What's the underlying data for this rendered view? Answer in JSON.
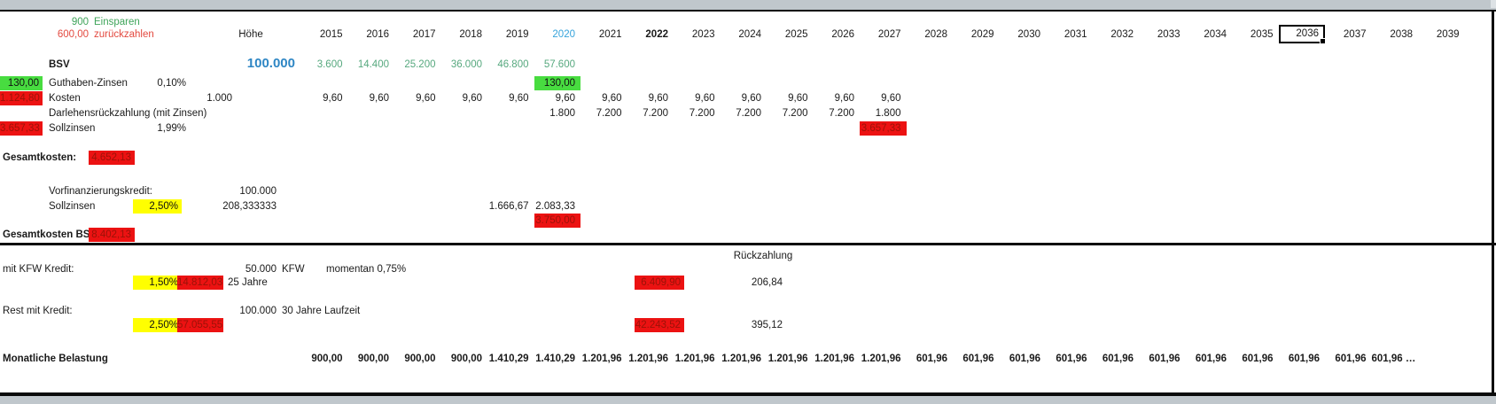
{
  "header": {
    "einsparen_value": "900",
    "einsparen_label": "Einsparen",
    "zurueckzahlen_value": "600,00",
    "zurueckzahlen_label": "zurückzahlen",
    "hoehe_label": "Höhe",
    "years": [
      "2015",
      "2016",
      "2017",
      "2018",
      "2019",
      "2020",
      "2021",
      "2022",
      "2023",
      "2024",
      "2025",
      "2026",
      "2027",
      "2028",
      "2029",
      "2030",
      "2031",
      "2032",
      "2033",
      "2034",
      "2035",
      "2036",
      "2037",
      "2038",
      "2039"
    ],
    "blue_year": "2020",
    "bold_year": "2022",
    "selected_year": "2036"
  },
  "bsv": {
    "label": "BSV",
    "amount": "100.000",
    "savings_by_year": [
      "3.600",
      "14.400",
      "25.200",
      "36.000",
      "46.800",
      "57.600",
      "",
      "",
      "",
      "",
      "",
      "",
      "",
      "",
      "",
      "",
      "",
      "",
      "",
      "",
      "",
      "",
      "",
      "",
      ""
    ]
  },
  "guthaben": {
    "highlight_value": "130,00",
    "label": "Guthaben-Zinsen",
    "rate": "0,10%",
    "cell_2020": "130,00"
  },
  "kosten": {
    "highlight_value": "1.124,80",
    "label": "Kosten",
    "base": "1.000",
    "by_year": [
      "9,60",
      "9,60",
      "9,60",
      "9,60",
      "9,60",
      "9,60",
      "9,60",
      "9,60",
      "9,60",
      "9,60",
      "9,60",
      "9,60",
      "9,60",
      "",
      "",
      "",
      "",
      "",
      "",
      "",
      "",
      "",
      "",
      "",
      ""
    ]
  },
  "darlehen": {
    "label": "Darlehensrückzahlung (mit Zinsen)",
    "by_year": [
      "",
      "",
      "",
      "",
      "",
      "1.800",
      "7.200",
      "7.200",
      "7.200",
      "7.200",
      "7.200",
      "7.200",
      "1.800",
      "",
      "",
      "",
      "",
      "",
      "",
      "",
      "",
      "",
      "",
      "",
      ""
    ]
  },
  "sollzinsen": {
    "highlight_value": "3.657,33",
    "label": "Sollzinsen",
    "rate": "1,99%",
    "cell_2027": "3.657,33"
  },
  "gesamtkosten": {
    "label": "Gesamtkosten:",
    "value": "4.652,13"
  },
  "vorfinanzierung": {
    "label": "Vorfinanzierungskredit:",
    "amount": "100.000",
    "sollzinsen_label": "Sollzinsen",
    "rate": "2,50%",
    "monthly": "208,333333",
    "interest_2019": "1.666,67",
    "interest_2020": "2.083,33",
    "total_2020": "3.750,00"
  },
  "gesamtkosten_bsv": {
    "label": "Gesamtkosten BSV:",
    "value": "8.402,13"
  },
  "rueckzahlung_header": "Rückzahlung",
  "kfw": {
    "label": "mit KFW Kredit:",
    "amount": "50.000",
    "name": "KFW",
    "momentan": "momentan 0,75%",
    "rate": "1,50%",
    "cost": "14.812,03",
    "duration": "25 Jahre",
    "total": "6.409,90",
    "monthly_rueckzahlung": "206,84"
  },
  "rest": {
    "label": "Rest mit Kredit:",
    "amount": "100.000",
    "duration": "30 Jahre Laufzeit",
    "rate": "2,50%",
    "cost": "57.055,55",
    "total": "42.243,52",
    "monthly_rueckzahlung": "395,12"
  },
  "monatlich": {
    "label": "Monatliche Belastung",
    "by_year": [
      "900,00",
      "900,00",
      "900,00",
      "900,00",
      "1.410,29",
      "1.410,29",
      "1.201,96",
      "1.201,96",
      "1.201,96",
      "1.201,96",
      "1.201,96",
      "1.201,96",
      "1.201,96",
      "601,96",
      "601,96",
      "601,96",
      "601,96",
      "601,96",
      "601,96",
      "601,96",
      "601,96",
      "601,96",
      "601,96",
      "601,96 …",
      ""
    ]
  },
  "colors": {
    "green_fill": "#48dc40",
    "red_fill": "#ec1212",
    "yellow_fill": "#ffff00",
    "green_text": "#3fa45a",
    "green_value_text": "#56a87e",
    "red_text": "#e3493f",
    "dark_red_on_fill": "#9b1208",
    "blue_amount": "#2e86c4",
    "blue_year": "#35a3db",
    "window_gray": "#c0c7cc"
  }
}
